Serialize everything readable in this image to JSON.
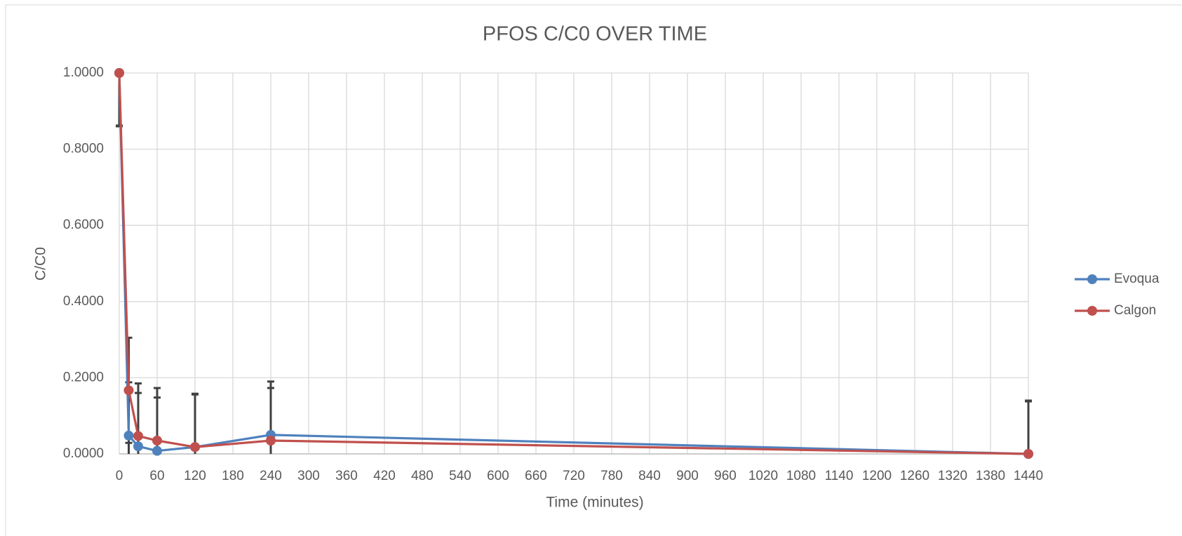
{
  "chart_data": {
    "type": "line",
    "title": "PFOS C/C0 OVER TIME",
    "x_label": "Time (minutes)",
    "y_label": "C/C0",
    "x": [
      0,
      15,
      30,
      60,
      120,
      240,
      1440
    ],
    "series": [
      {
        "name": "Evoqua",
        "color": "#4f81bd",
        "values": [
          1.0,
          0.048,
          0.02,
          0.008,
          0.018,
          0.05,
          0.0
        ],
        "errors": [
          0.14,
          0.14,
          0.14,
          0.14,
          0.14,
          0.14,
          0.14
        ]
      },
      {
        "name": "Calgon",
        "color": "#c0504d",
        "values": [
          1.0,
          0.167,
          0.047,
          0.035,
          0.018,
          0.035,
          0.0
        ],
        "errors": [
          0.138,
          0.138,
          0.138,
          0.138,
          0.138,
          0.138,
          0.138
        ]
      }
    ],
    "error_color": "#404040",
    "xlim": [
      0,
      1440
    ],
    "xticks": [
      0,
      60,
      120,
      180,
      240,
      300,
      360,
      420,
      480,
      540,
      600,
      660,
      720,
      780,
      840,
      900,
      960,
      1020,
      1080,
      1140,
      1200,
      1260,
      1320,
      1380,
      1440
    ],
    "ylim": [
      0,
      1
    ],
    "yticks": [
      {
        "value": 0,
        "label": "0.0000"
      },
      {
        "value": 0.2,
        "label": "0.2000"
      },
      {
        "value": 0.4,
        "label": "0.4000"
      },
      {
        "value": 0.6,
        "label": "0.6000"
      },
      {
        "value": 0.8,
        "label": "0.8000"
      },
      {
        "value": 1,
        "label": "1.0000"
      }
    ],
    "grid": true,
    "legend": "right"
  }
}
